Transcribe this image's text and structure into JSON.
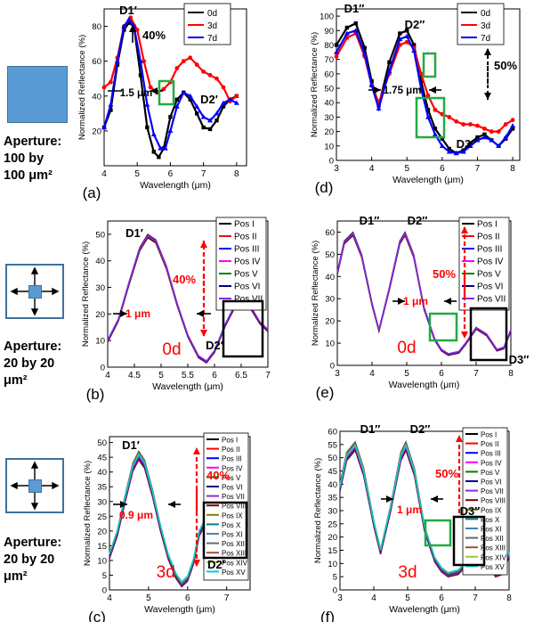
{
  "apertures": [
    {
      "line1": "Aperture:",
      "line2": "100 by",
      "line3": "100 μm²"
    },
    {
      "line1": "Aperture:",
      "line2": "20 by 20",
      "line3": "μm²"
    },
    {
      "line1": "Aperture:",
      "line2": "20 by 20",
      "line3": "μm²"
    }
  ],
  "chart_data": [
    {
      "panel": "(a)",
      "type": "line",
      "xlabel": "Wavelength (μm)",
      "ylabel": "Normalized Reflectance (%)",
      "xlim": [
        4,
        8.3
      ],
      "ylim": [
        0,
        90
      ],
      "xticks": [
        4,
        5,
        6,
        7,
        8
      ],
      "yticks": [
        20,
        40,
        60,
        80
      ],
      "legend": "top-right",
      "series": [
        {
          "name": "0d",
          "color": "#000000",
          "marker": "square",
          "x": [
            4,
            4.2,
            4.4,
            4.6,
            4.75,
            4.9,
            5.1,
            5.3,
            5.5,
            5.65,
            5.8,
            6.0,
            6.2,
            6.4,
            6.6,
            6.8,
            7.0,
            7.2,
            7.4,
            7.6,
            7.8,
            8.0
          ],
          "y": [
            22,
            32,
            58,
            78,
            82,
            80,
            52,
            22,
            8,
            5,
            10,
            28,
            38,
            42,
            38,
            30,
            22,
            21,
            26,
            34,
            38,
            40
          ]
        },
        {
          "name": "3d",
          "color": "#ff0000",
          "marker": "circle",
          "x": [
            4,
            4.2,
            4.4,
            4.6,
            4.8,
            5.0,
            5.2,
            5.4,
            5.6,
            5.8,
            6.0,
            6.2,
            6.4,
            6.6,
            6.8,
            7.0,
            7.2,
            7.4,
            7.6,
            7.8,
            8.0
          ],
          "y": [
            45,
            48,
            62,
            80,
            85,
            78,
            60,
            45,
            42,
            44,
            48,
            56,
            60,
            62,
            58,
            54,
            52,
            50,
            45,
            37,
            40
          ]
        },
        {
          "name": "7d",
          "color": "#0000ff",
          "marker": "triangle",
          "x": [
            4,
            4.2,
            4.4,
            4.6,
            4.75,
            4.9,
            5.1,
            5.3,
            5.5,
            5.7,
            5.85,
            6.0,
            6.2,
            6.4,
            6.6,
            6.8,
            7.0,
            7.2,
            7.4,
            7.6,
            7.8,
            8.0
          ],
          "y": [
            22,
            35,
            60,
            80,
            84,
            80,
            60,
            35,
            18,
            10,
            10,
            20,
            34,
            42,
            40,
            34,
            28,
            26,
            30,
            36,
            38,
            36
          ]
        }
      ],
      "annotations": [
        "D1′",
        "D2′",
        "40%",
        "1.5 μm"
      ]
    },
    {
      "panel": "(d)",
      "type": "line",
      "xlabel": "Wavelength (μm)",
      "ylabel": "Normalized Reflectance (%)",
      "xlim": [
        3,
        8.2
      ],
      "ylim": [
        0,
        105
      ],
      "xticks": [
        3,
        4,
        5,
        6,
        7,
        8
      ],
      "yticks": [
        0,
        10,
        20,
        30,
        40,
        50,
        60,
        70,
        80,
        90,
        100
      ],
      "legend": "top-right",
      "series": [
        {
          "name": "0d",
          "color": "#000000",
          "marker": "square",
          "x": [
            3.0,
            3.3,
            3.55,
            3.8,
            4.0,
            4.2,
            4.5,
            4.8,
            5.0,
            5.2,
            5.4,
            5.6,
            5.8,
            6.0,
            6.2,
            6.4,
            6.6,
            6.8,
            7.0,
            7.2,
            7.4,
            7.6,
            7.8,
            8.0
          ],
          "y": [
            80,
            92,
            95,
            78,
            55,
            38,
            68,
            88,
            90,
            80,
            55,
            35,
            22,
            15,
            8,
            5,
            7,
            12,
            16,
            18,
            14,
            10,
            15,
            22
          ]
        },
        {
          "name": "3d",
          "color": "#ff0000",
          "marker": "circle",
          "x": [
            3.0,
            3.3,
            3.55,
            3.8,
            4.0,
            4.2,
            4.5,
            4.8,
            5.0,
            5.2,
            5.4,
            5.6,
            5.8,
            6.0,
            6.2,
            6.4,
            6.6,
            6.8,
            7.0,
            7.2,
            7.4,
            7.6,
            7.8,
            8.0
          ],
          "y": [
            72,
            85,
            88,
            72,
            52,
            40,
            60,
            80,
            82,
            78,
            60,
            45,
            35,
            32,
            30,
            27,
            25,
            25,
            24,
            22,
            20,
            20,
            25,
            28
          ]
        },
        {
          "name": "7d",
          "color": "#0000ff",
          "marker": "triangle",
          "x": [
            3.0,
            3.3,
            3.55,
            3.8,
            4.0,
            4.2,
            4.5,
            4.8,
            5.0,
            5.2,
            5.4,
            5.6,
            5.8,
            6.0,
            6.2,
            6.4,
            6.6,
            6.8,
            7.0,
            7.2,
            7.4,
            7.6,
            7.8,
            8.0
          ],
          "y": [
            75,
            88,
            90,
            74,
            52,
            36,
            62,
            84,
            86,
            76,
            50,
            30,
            18,
            10,
            6,
            5,
            6,
            10,
            14,
            16,
            14,
            10,
            16,
            24
          ]
        }
      ],
      "annotations": [
        "D1″",
        "D2″",
        "D3″",
        "50%",
        "1.75 μm"
      ]
    },
    {
      "panel": "(b)",
      "type": "line",
      "xlabel": "Wavelength (μm)",
      "ylabel": "Normalized Reflectance (%)",
      "xlim": [
        4.0,
        7.0
      ],
      "ylim": [
        0,
        55
      ],
      "xticks": [
        4.0,
        4.5,
        5.0,
        5.5,
        6.0,
        6.5,
        7.0
      ],
      "yticks": [
        0,
        10,
        20,
        30,
        40,
        50
      ],
      "legend": "top-right",
      "label": "0d",
      "series_names": [
        "Pos I",
        "Pos II",
        "Pos III",
        "Pos IV",
        "Pos V",
        "Pos VI",
        "Pos VII"
      ],
      "series_colors": [
        "#000000",
        "#ff0000",
        "#0000ff",
        "#ff00ff",
        "#008000",
        "#000080",
        "#8a2be2"
      ],
      "x": [
        4.0,
        4.2,
        4.4,
        4.6,
        4.75,
        4.9,
        5.1,
        5.3,
        5.5,
        5.7,
        5.85,
        6.0,
        6.2,
        6.4,
        6.55,
        6.7,
        6.85,
        7.0
      ],
      "y": [
        10,
        18,
        32,
        45,
        50,
        48,
        38,
        24,
        12,
        4,
        2,
        6,
        16,
        24,
        26,
        22,
        17,
        14
      ],
      "annotations": [
        "D1′",
        "D2′",
        "40%",
        "1 μm"
      ]
    },
    {
      "panel": "(e)",
      "type": "line",
      "xlabel": "Wavelength (μm)",
      "ylabel": "Normalized Reflectance (%)",
      "xlim": [
        3,
        8
      ],
      "ylim": [
        0,
        65
      ],
      "xticks": [
        3,
        4,
        5,
        6,
        7,
        8
      ],
      "yticks": [
        0,
        10,
        20,
        30,
        40,
        50,
        60
      ],
      "legend": "top-right",
      "label": "0d",
      "series_names": [
        "Pos I",
        "Pos II",
        "Pos III",
        "Pos IV",
        "Pos V",
        "Pos VI",
        "Pos VII"
      ],
      "series_colors": [
        "#000000",
        "#ff0000",
        "#0000ff",
        "#ff00ff",
        "#008000",
        "#000080",
        "#8a2be2"
      ],
      "x": [
        3.0,
        3.2,
        3.45,
        3.7,
        4.0,
        4.2,
        4.5,
        4.8,
        4.95,
        5.2,
        5.5,
        5.8,
        6.0,
        6.2,
        6.5,
        6.7,
        7.0,
        7.3,
        7.6,
        7.8,
        8.0
      ],
      "y": [
        42,
        56,
        60,
        50,
        28,
        16,
        35,
        56,
        60,
        50,
        26,
        12,
        7,
        5,
        6,
        10,
        17,
        14,
        7,
        8,
        16
      ],
      "annotations": [
        "D1″",
        "D2″",
        "D3″",
        "50%",
        "1 μm"
      ]
    },
    {
      "panel": "(c)",
      "type": "line",
      "xlabel": "Wavelength (μm)",
      "ylabel": "Normalized Reflectance (%)",
      "xlim": [
        4,
        7.6
      ],
      "ylim": [
        0,
        52
      ],
      "xticks": [
        4,
        5,
        6,
        7
      ],
      "yticks": [
        0,
        5,
        10,
        15,
        20,
        25,
        30,
        35,
        40,
        45,
        50
      ],
      "legend": "top-right",
      "label": "3d",
      "series_names": [
        "Pos I",
        "Pos II",
        "Pos III",
        "Pos IV",
        "Pos V",
        "Pos VI",
        "Pos VII",
        "Pos VIII",
        "Pos IX",
        "Pos X",
        "Pos XI",
        "Pos XII",
        "Pos XIII",
        "Pos XIV",
        "Pos XV"
      ],
      "series_colors": [
        "#000000",
        "#ff0000",
        "#0000ff",
        "#ff00ff",
        "#008000",
        "#000080",
        "#8a2be2",
        "#800000",
        "#808000",
        "#008080",
        "#4682b4",
        "#696969",
        "#a0522d",
        "#9acd32",
        "#00ced1"
      ],
      "x": [
        4.0,
        4.2,
        4.4,
        4.6,
        4.75,
        4.9,
        5.1,
        5.3,
        5.5,
        5.7,
        5.85,
        6.0,
        6.15,
        6.3,
        6.45,
        6.6,
        6.8,
        7.0,
        7.2,
        7.4
      ],
      "y": [
        12,
        20,
        32,
        43,
        47,
        44,
        34,
        22,
        12,
        5,
        2,
        4,
        10,
        20,
        24,
        22,
        18,
        15,
        12,
        10
      ],
      "annotations": [
        "D1′",
        "D2′",
        "40%",
        "0.9 μm"
      ]
    },
    {
      "panel": "(f)",
      "type": "line",
      "xlabel": "Wavelength (μm)",
      "ylabel": "Normalized Reflectance (%)",
      "xlim": [
        3,
        8
      ],
      "ylim": [
        0,
        60
      ],
      "xticks": [
        3,
        4,
        5,
        6,
        7,
        8
      ],
      "yticks": [
        0,
        5,
        10,
        15,
        20,
        25,
        30,
        35,
        40,
        45,
        50,
        55,
        60
      ],
      "legend": "top-right",
      "label": "3d",
      "series_names": [
        "Pos I",
        "Pos II",
        "Pos III",
        "Pos IV",
        "Pos V",
        "Pos VI",
        "Pos VII",
        "Pos VIII",
        "Pos IX",
        "Pos X",
        "Pos XI",
        "Pos XII",
        "Pos XIII",
        "Pos XIV",
        "Pos XV"
      ],
      "series_colors": [
        "#000000",
        "#ff0000",
        "#0000ff",
        "#ff00ff",
        "#008000",
        "#000080",
        "#8a2be2",
        "#800000",
        "#808000",
        "#008080",
        "#4682b4",
        "#696969",
        "#a0522d",
        "#9acd32",
        "#00ced1"
      ],
      "x": [
        3.0,
        3.2,
        3.45,
        3.7,
        4.0,
        4.2,
        4.5,
        4.8,
        4.95,
        5.2,
        5.5,
        5.8,
        6.0,
        6.2,
        6.5,
        6.7,
        7.0,
        7.3,
        7.6,
        7.8,
        8.0
      ],
      "y": [
        40,
        52,
        56,
        46,
        26,
        15,
        32,
        52,
        56,
        46,
        24,
        12,
        8,
        6,
        7,
        10,
        16,
        13,
        6,
        7,
        14
      ],
      "annotations": [
        "D1″",
        "D2″",
        "D3″",
        "50%",
        "1 μm"
      ]
    }
  ]
}
